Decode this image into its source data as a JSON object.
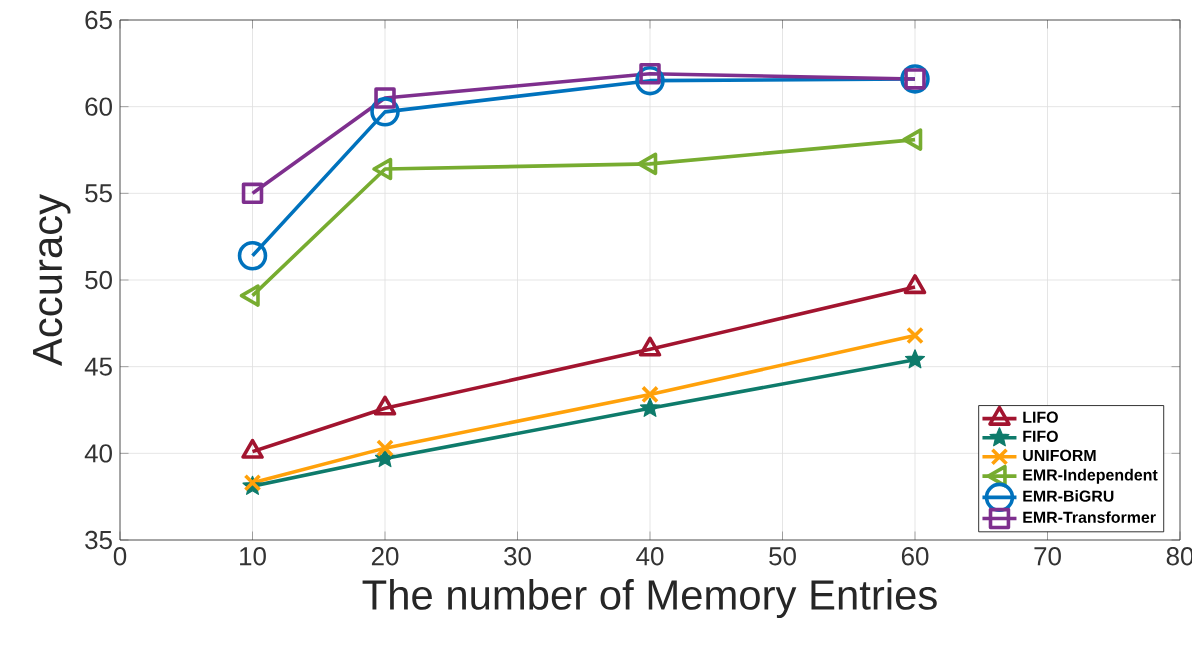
{
  "chart_data": {
    "type": "line",
    "xlabel": "The number of Memory Entries",
    "ylabel": "Accuracy",
    "x": [
      10,
      20,
      40,
      60
    ],
    "series": [
      {
        "name": "LIFO",
        "color": "#a2142f",
        "marker": "triangle",
        "values": [
          40.1,
          42.6,
          46.0,
          49.6
        ]
      },
      {
        "name": "FIFO",
        "color": "#0e7b6b",
        "marker": "star",
        "values": [
          38.1,
          39.7,
          42.6,
          45.4
        ]
      },
      {
        "name": "UNIFORM",
        "color": "#ffa10a",
        "marker": "cross",
        "values": [
          38.3,
          40.3,
          43.4,
          46.8
        ]
      },
      {
        "name": "EMR-Independent",
        "color": "#77ac30",
        "marker": "triangle-left",
        "values": [
          49.1,
          56.4,
          56.7,
          58.1
        ]
      },
      {
        "name": "EMR-BiGRU",
        "color": "#0072bd",
        "marker": "circle",
        "values": [
          51.4,
          59.7,
          61.5,
          61.6
        ]
      },
      {
        "name": "EMR-Transformer",
        "color": "#7e2f8e",
        "marker": "square",
        "values": [
          55.0,
          60.5,
          61.9,
          61.6
        ]
      }
    ],
    "xlim": [
      0,
      80
    ],
    "xticks": [
      0,
      10,
      20,
      30,
      40,
      50,
      60,
      70,
      80
    ],
    "ylim": [
      35,
      65
    ],
    "yticks": [
      35,
      40,
      45,
      50,
      55,
      60,
      65
    ],
    "grid": true,
    "legend": "bottom right",
    "line_style": "solid"
  }
}
